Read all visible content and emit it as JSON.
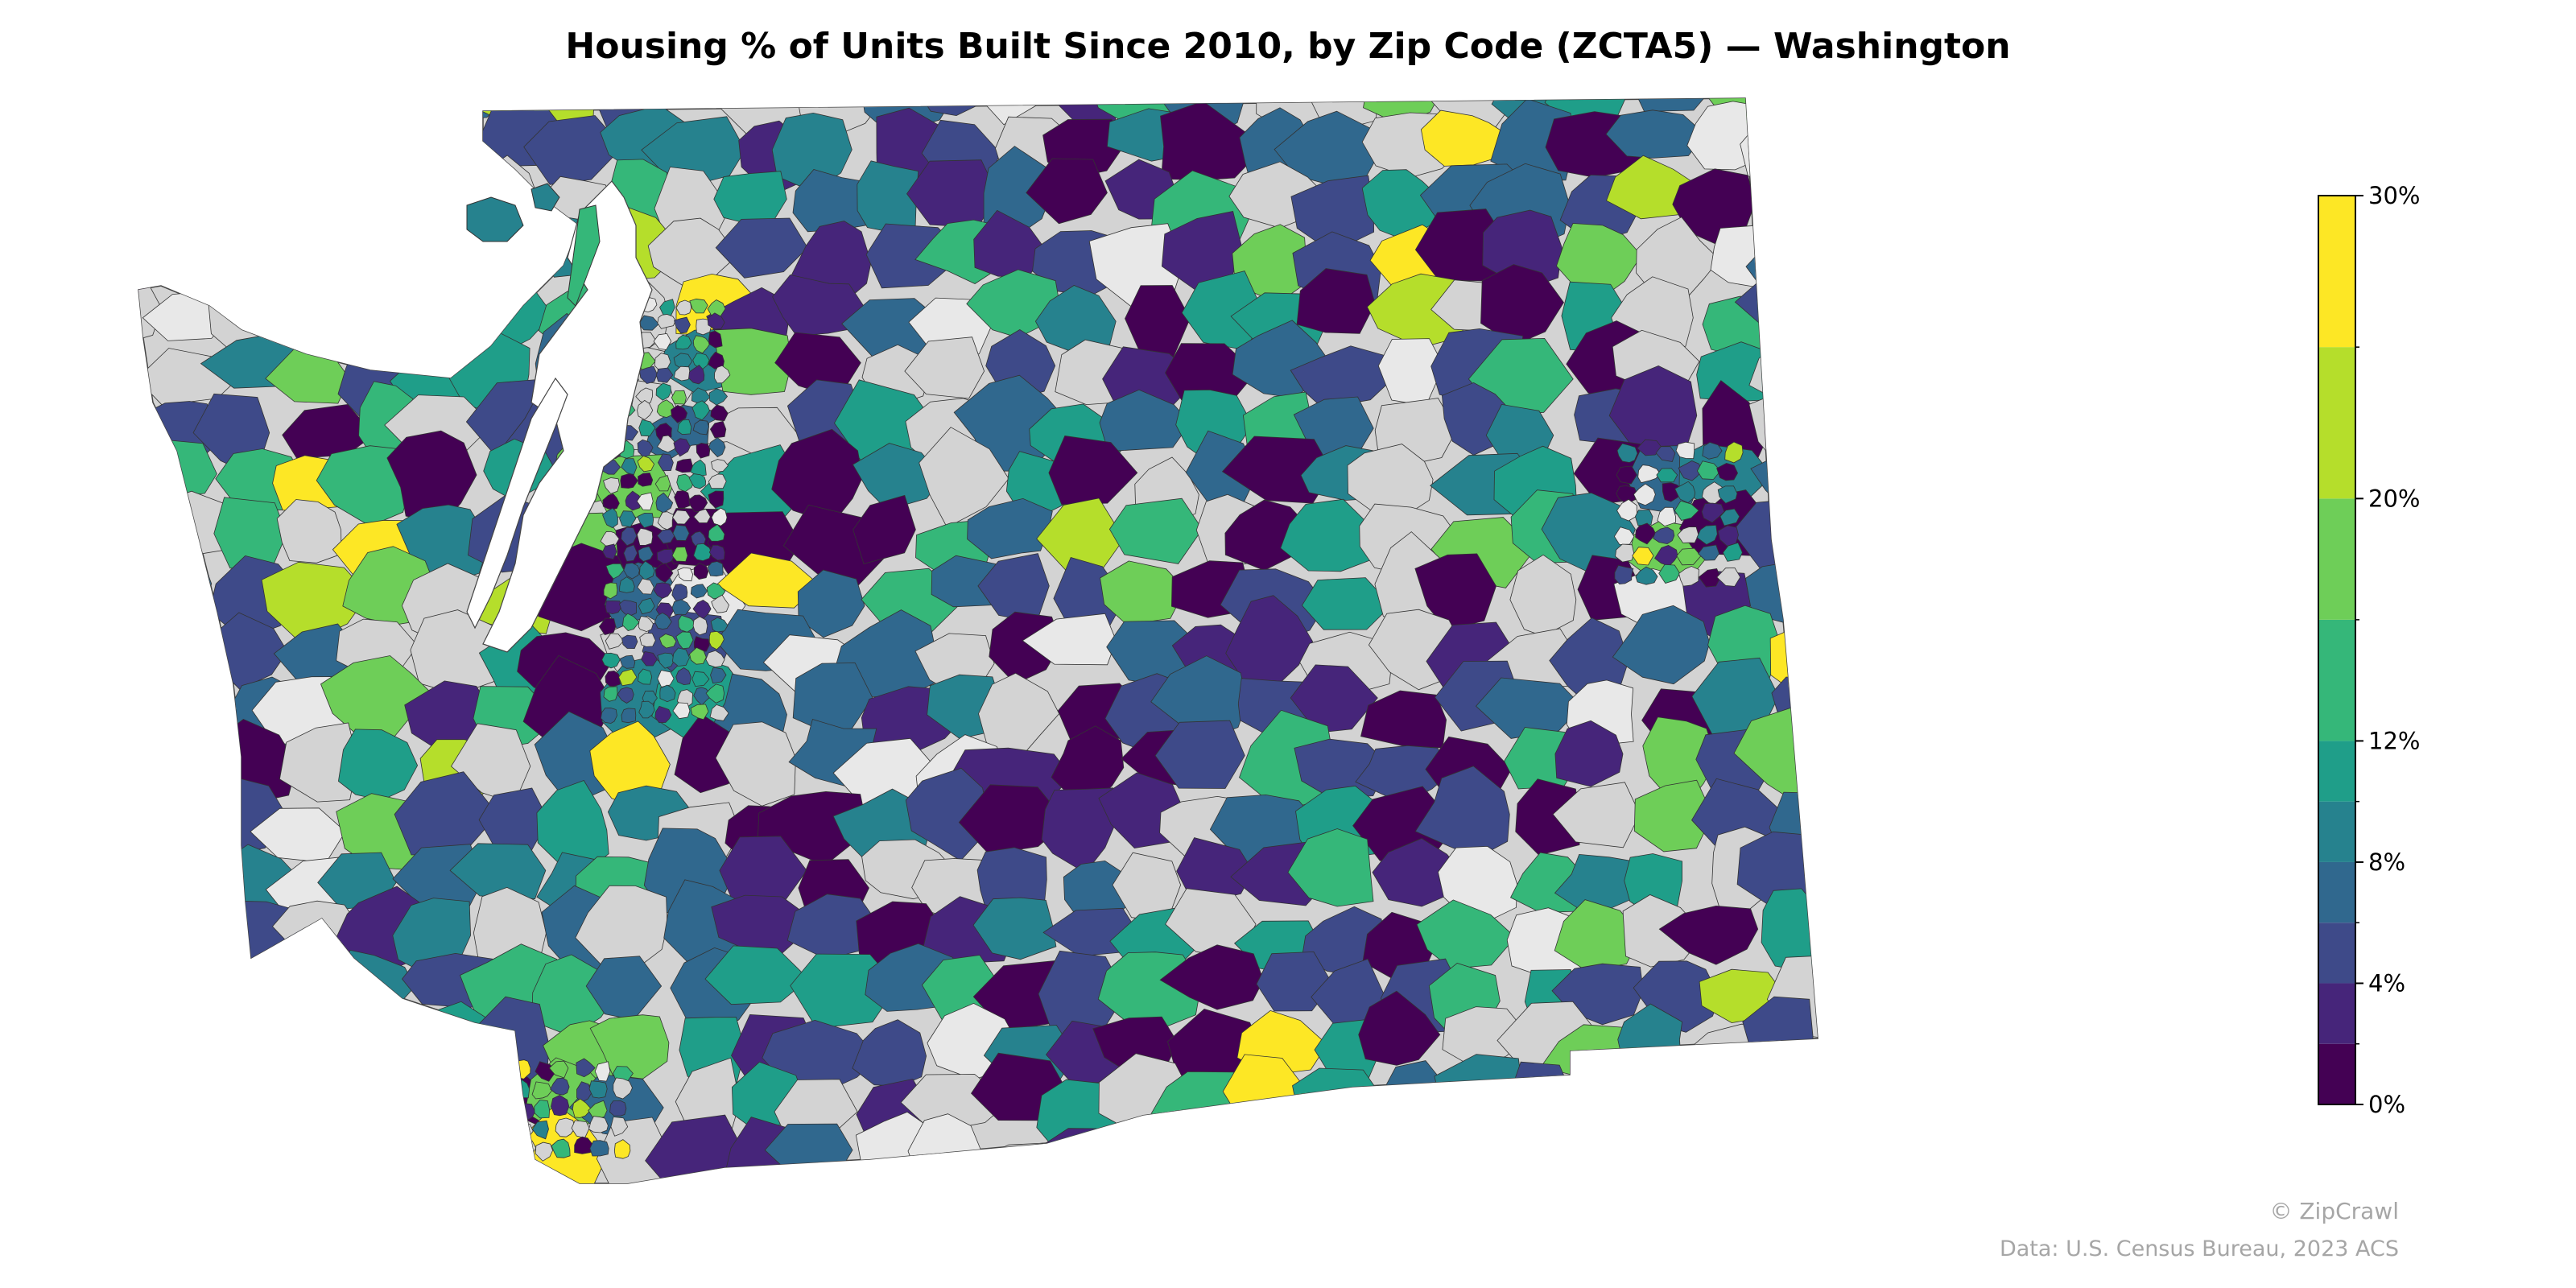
{
  "title": "Housing % of Units Built Since 2010, by Zip Code (ZCTA5) — Washington",
  "colorbar": {
    "ticks": [
      {
        "value": 0,
        "label": "0%"
      },
      {
        "value": 4,
        "label": "4%"
      },
      {
        "value": 8,
        "label": "8%"
      },
      {
        "value": 12,
        "label": "12%"
      },
      {
        "value": 20,
        "label": "20%"
      },
      {
        "value": 30,
        "label": "30%"
      }
    ],
    "bins": [
      {
        "from": 0,
        "to": 2,
        "color": "#440154"
      },
      {
        "from": 2,
        "to": 4,
        "color": "#46257a"
      },
      {
        "from": 4,
        "to": 6,
        "color": "#3e4a89"
      },
      {
        "from": 6,
        "to": 8,
        "color": "#30688e"
      },
      {
        "from": 8,
        "to": 10,
        "color": "#26828e"
      },
      {
        "from": 10,
        "to": 12,
        "color": "#1f9e89"
      },
      {
        "from": 12,
        "to": 16,
        "color": "#35b779"
      },
      {
        "from": 16,
        "to": 20,
        "color": "#6ece58"
      },
      {
        "from": 20,
        "to": 25,
        "color": "#b5de2b"
      },
      {
        "from": 25,
        "to": 30,
        "color": "#fde725"
      }
    ]
  },
  "nodata_colors": [
    "#d3d3d3",
    "#e8e8e8"
  ],
  "credits": {
    "line1": "© ZipCrawl",
    "line2": "Data: U.S. Census Bureau, 2023 ACS"
  }
}
